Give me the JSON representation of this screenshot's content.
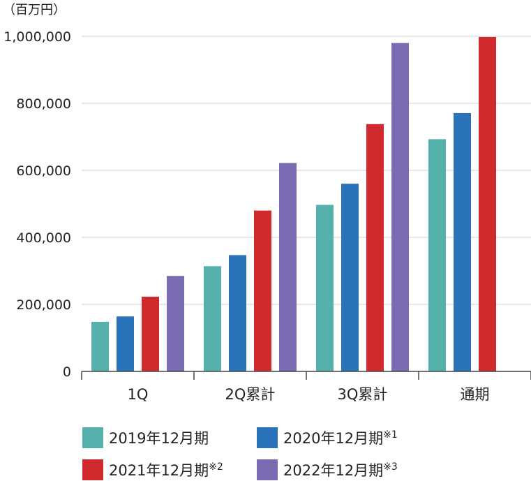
{
  "chart_data": {
    "type": "bar",
    "unit_label": "（百万円）",
    "categories": [
      "1Q",
      "2Q累計",
      "3Q累計",
      "通期"
    ],
    "ylim": [
      0,
      1000000
    ],
    "yticks": [
      "0",
      "200,000",
      "400,000",
      "600,000",
      "800,000",
      "1,000,000"
    ],
    "ytick_values": [
      0,
      200000,
      400000,
      600000,
      800000,
      1000000
    ],
    "grid": true,
    "legend_position": "bottom",
    "series": [
      {
        "name": "2019年12月期",
        "note": "",
        "color": "#56b1ad",
        "values": [
          148000,
          314000,
          497000,
          693000
        ]
      },
      {
        "name": "2020年12月期",
        "note": "※1",
        "color": "#2a73ba",
        "values": [
          164000,
          347000,
          560000,
          771000
        ]
      },
      {
        "name": "2021年12月期",
        "note": "※2",
        "color": "#d0292e",
        "values": [
          223000,
          480000,
          738000,
          998000
        ]
      },
      {
        "name": "2022年12月期",
        "note": "※3",
        "color": "#7b6bb3",
        "values": [
          285000,
          622000,
          980000,
          null
        ]
      }
    ]
  }
}
